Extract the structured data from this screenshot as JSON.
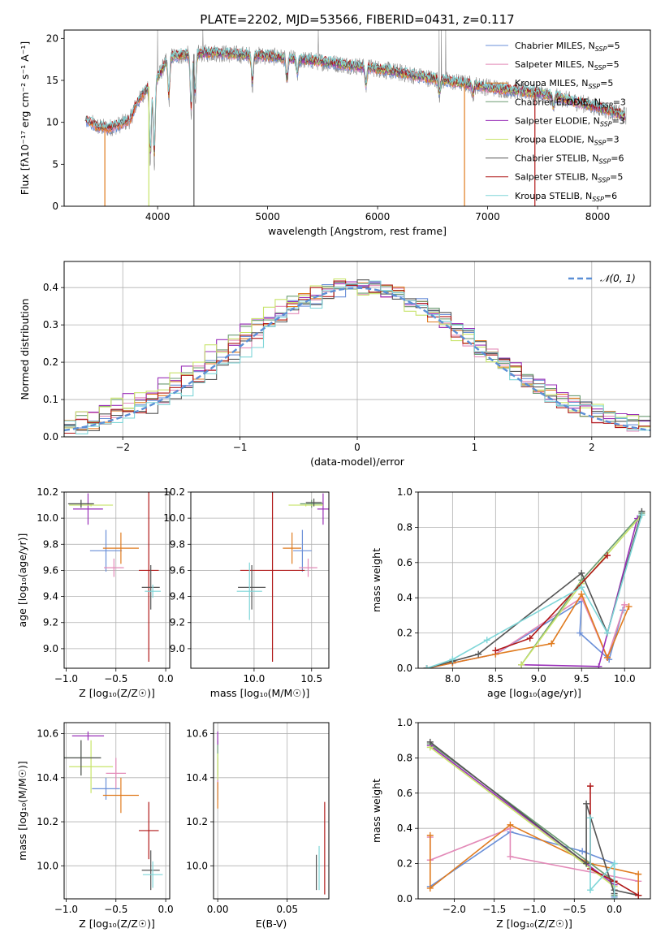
{
  "figure": {
    "title": "PLATE=2202, MJD=53566, FIBERID=0431, z=0.117"
  },
  "palette": {
    "c_chab_miles": "#6a8fd8",
    "c_salp_miles": "#e38ab8",
    "c_krou_miles": "#e07b1f",
    "c_chab_elod": "#6b9b72",
    "c_salp_elod": "#9a30b8",
    "c_krou_elod": "#c8e46a",
    "c_chab_stel": "#555555",
    "c_salp_stel": "#b01818",
    "c_krou_stel": "#7fd6d8",
    "gauss": "#5b8fd6"
  },
  "chart_data": [
    {
      "id": "spectrum",
      "type": "line",
      "xlabel": "wavelength [Angstrom, rest frame]",
      "ylabel": "Flux [fλ10⁻¹⁷ erg cm⁻² s⁻¹ A⁻¹]",
      "xlim": [
        3150,
        8480
      ],
      "ylim": [
        0,
        21
      ],
      "xticks": [
        4000,
        5000,
        6000,
        7000,
        8000
      ],
      "yticks": [
        0,
        5,
        10,
        15,
        20
      ],
      "grid": false,
      "legend_position": "top-right",
      "legend": [
        {
          "base": "Chabrier MILES, N",
          "sub": "SSP",
          "tail": "=5",
          "color_key": "c_chab_miles"
        },
        {
          "base": "Salpeter MILES, N",
          "sub": "SSP",
          "tail": "=5",
          "color_key": "c_salp_miles"
        },
        {
          "base": "Kroupa MILES, N",
          "sub": "SSP",
          "tail": "=5",
          "color_key": "c_krou_miles"
        },
        {
          "base": "Chabrier ELODIE, N",
          "sub": "SSP",
          "tail": "=3",
          "color_key": "c_chab_elod"
        },
        {
          "base": "Salpeter ELODIE, N",
          "sub": "SSP",
          "tail": "=3",
          "color_key": "c_salp_elod"
        },
        {
          "base": "Kroupa ELODIE, N",
          "sub": "SSP",
          "tail": "=3",
          "color_key": "c_krou_elod"
        },
        {
          "base": "Chabrier STELIB, N",
          "sub": "SSP",
          "tail": "=6",
          "color_key": "c_chab_stel"
        },
        {
          "base": "Salpeter STELIB, N",
          "sub": "SSP",
          "tail": "=5",
          "color_key": "c_salp_stel"
        },
        {
          "base": "Kroupa STELIB, N",
          "sub": "SSP",
          "tail": "=6",
          "color_key": "c_krou_stel"
        }
      ],
      "continuum": [
        [
          3350,
          10.2
        ],
        [
          3450,
          9.5
        ],
        [
          3550,
          9.3
        ],
        [
          3650,
          9.7
        ],
        [
          3750,
          10.3
        ],
        [
          3800,
          12.0
        ],
        [
          3900,
          14.0
        ],
        [
          4000,
          15.3
        ],
        [
          4100,
          17.8
        ],
        [
          4300,
          18.1
        ],
        [
          4500,
          18.3
        ],
        [
          4700,
          18.1
        ],
        [
          5000,
          17.9
        ],
        [
          5500,
          17.2
        ],
        [
          6000,
          16.4
        ],
        [
          6500,
          15.2
        ],
        [
          7000,
          14.2
        ],
        [
          7500,
          13.4
        ],
        [
          8000,
          11.8
        ],
        [
          8250,
          10.8
        ]
      ],
      "absorption_lines": [
        [
          3934,
          8.0
        ],
        [
          3969,
          8.5
        ],
        [
          4102,
          4.5
        ],
        [
          4305,
          6.5
        ],
        [
          4341,
          4.5
        ],
        [
          4861,
          3.0
        ],
        [
          5175,
          2.5
        ],
        [
          5270,
          1.5
        ],
        [
          5894,
          2.0
        ],
        [
          6563,
          1.5
        ],
        [
          6867,
          1.0
        ],
        [
          7600,
          1.2
        ]
      ],
      "emission_spikes": [
        [
          4000,
          21.0
        ],
        [
          4410,
          21.0
        ],
        [
          5460,
          21.0
        ],
        [
          6560,
          21.0
        ],
        [
          6580,
          21.0
        ],
        [
          6620,
          21.0
        ]
      ],
      "dropouts": [
        [
          3520,
          "c_krou_miles"
        ],
        [
          3920,
          "c_krou_elod"
        ],
        [
          4330,
          "c_chab_stel"
        ],
        [
          6790,
          "c_krou_miles"
        ],
        [
          7430,
          "c_salp_stel"
        ]
      ],
      "gray_start": 3400,
      "gray_end": 8260
    },
    {
      "id": "residuals",
      "type": "histogram",
      "xlabel": "(data-model)/error",
      "ylabel": "Normed distribution",
      "xlim": [
        -2.5,
        2.5
      ],
      "ylim": [
        0,
        0.47
      ],
      "xticks": [
        -2,
        -1,
        0,
        1,
        2
      ],
      "yticks": [
        0.0,
        0.1,
        0.2,
        0.3,
        0.4
      ],
      "grid": true,
      "bin_width": 0.1,
      "legend_position": "top-right",
      "gaussian_label": "𝒩(0, 1)"
    },
    {
      "id": "age_vs_Z",
      "type": "scatter",
      "xlabel": "Z [log₁₀(Z/Z☉)]",
      "ylabel": "age  [log₁₀(age/yr)]",
      "xlim": [
        -1.02,
        0.04
      ],
      "ylim": [
        8.85,
        10.2
      ],
      "xticks": [
        -1.0,
        -0.5,
        0.0
      ],
      "yticks": [
        9.0,
        9.2,
        9.4,
        9.6,
        9.8,
        10.0,
        10.2
      ],
      "grid": true,
      "points": [
        {
          "color_key": "c_chab_miles",
          "x": -0.6,
          "xerr": 0.16,
          "y": 9.75,
          "yerr": 0.16
        },
        {
          "color_key": "c_salp_miles",
          "x": -0.52,
          "xerr": 0.1,
          "y": 9.62,
          "yerr": 0.07
        },
        {
          "color_key": "c_krou_miles",
          "x": -0.45,
          "xerr": 0.18,
          "y": 9.77,
          "yerr": 0.12
        },
        {
          "color_key": "c_chab_elod",
          "x": -0.85,
          "xerr": 0.12,
          "y": 10.11,
          "yerr": 0.03
        },
        {
          "color_key": "c_salp_elod",
          "x": -0.78,
          "xerr": 0.15,
          "y": 10.07,
          "yerr": 0.12
        },
        {
          "color_key": "c_krou_elod",
          "x": -0.75,
          "xerr": 0.22,
          "y": 10.1,
          "yerr": 0.01
        },
        {
          "color_key": "c_chab_stel",
          "x": -0.85,
          "xerr": 0.13,
          "y": 10.11,
          "yerr": 0.03
        },
        {
          "color_key": "c_salp_stel",
          "x": -0.17,
          "xerr": 0.1,
          "y": 9.6,
          "yerr": 0.7
        },
        {
          "color_key": "c_chab_stel",
          "x": -0.15,
          "xerr": 0.09,
          "y": 9.47,
          "yerr": 0.17
        },
        {
          "color_key": "c_krou_stel",
          "x": -0.13,
          "xerr": 0.08,
          "y": 9.44,
          "yerr": 0.05
        }
      ]
    },
    {
      "id": "age_vs_mass",
      "type": "scatter",
      "xlabel": "mass [log₁₀(M/M☉)]",
      "ylabel": "",
      "xlim": [
        9.45,
        10.65
      ],
      "ylim": [
        8.85,
        10.2
      ],
      "xticks": [
        10.0,
        10.5
      ],
      "yticks": [
        9.0,
        9.2,
        9.4,
        9.6,
        9.8,
        10.0,
        10.2
      ],
      "grid": true,
      "points": [
        {
          "color_key": "c_chab_miles",
          "x": 10.42,
          "xerr": 0.08,
          "y": 9.75,
          "yerr": 0.16
        },
        {
          "color_key": "c_salp_miles",
          "x": 10.47,
          "xerr": 0.08,
          "y": 9.62,
          "yerr": 0.07
        },
        {
          "color_key": "c_krou_miles",
          "x": 10.33,
          "xerr": 0.08,
          "y": 9.77,
          "yerr": 0.12
        },
        {
          "color_key": "c_chab_elod",
          "x": 10.5,
          "xerr": 0.1,
          "y": 10.11,
          "yerr": 0.03
        },
        {
          "color_key": "c_salp_elod",
          "x": 10.6,
          "xerr": 0.05,
          "y": 10.07,
          "yerr": 0.12
        },
        {
          "color_key": "c_krou_elod",
          "x": 10.45,
          "xerr": 0.15,
          "y": 10.1,
          "yerr": 0.01
        },
        {
          "color_key": "c_chab_stel",
          "x": 10.52,
          "xerr": 0.07,
          "y": 10.12,
          "yerr": 0.03
        },
        {
          "color_key": "c_salp_stel",
          "x": 10.16,
          "xerr": 0.28,
          "y": 9.6,
          "yerr": 0.7
        },
        {
          "color_key": "c_chab_stel",
          "x": 9.98,
          "xerr": 0.12,
          "y": 9.47,
          "yerr": 0.17
        },
        {
          "color_key": "c_krou_stel",
          "x": 9.96,
          "xerr": 0.11,
          "y": 9.44,
          "yerr": 0.22
        }
      ]
    },
    {
      "id": "weight_vs_age",
      "type": "line",
      "xlabel": "age  [log₁₀(age/yr)]",
      "ylabel": "mass weight",
      "xlim": [
        7.6,
        10.3
      ],
      "ylim": [
        0,
        1
      ],
      "xticks": [
        8.0,
        8.5,
        9.0,
        9.5,
        10.0
      ],
      "yticks": [
        0.0,
        0.2,
        0.4,
        0.6,
        0.8,
        1.0
      ],
      "grid": true,
      "series": [
        {
          "color_key": "c_chab_miles",
          "x": [
            7.7,
            8.0,
            8.5,
            9.5,
            9.48,
            9.82,
            9.98
          ],
          "y": [
            0.0,
            0.03,
            0.08,
            0.38,
            0.2,
            0.05,
            0.33
          ]
        },
        {
          "color_key": "c_salp_miles",
          "x": [
            7.7,
            8.0,
            8.5,
            9.5,
            9.8,
            10.0
          ],
          "y": [
            0.0,
            0.03,
            0.08,
            0.4,
            0.06,
            0.36
          ]
        },
        {
          "color_key": "c_krou_miles",
          "x": [
            7.7,
            8.0,
            8.5,
            9.15,
            9.5,
            9.8,
            10.05
          ],
          "y": [
            0.0,
            0.03,
            0.08,
            0.14,
            0.42,
            0.06,
            0.35
          ]
        },
        {
          "color_key": "c_chab_elod",
          "x": [
            8.8,
            9.5,
            10.2
          ],
          "y": [
            0.02,
            0.5,
            0.88
          ]
        },
        {
          "color_key": "c_salp_elod",
          "x": [
            8.8,
            9.7,
            10.15
          ],
          "y": [
            0.02,
            0.01,
            0.85
          ]
        },
        {
          "color_key": "c_krou_elod",
          "x": [
            8.8,
            9.5,
            10.2
          ],
          "y": [
            0.02,
            0.48,
            0.87
          ]
        },
        {
          "color_key": "c_chab_stel",
          "x": [
            7.7,
            8.0,
            8.3,
            9.5,
            9.8,
            10.2
          ],
          "y": [
            0.0,
            0.04,
            0.08,
            0.54,
            0.2,
            0.89
          ]
        },
        {
          "color_key": "c_salp_stel",
          "x": [
            8.5,
            8.9,
            9.8
          ],
          "y": [
            0.1,
            0.17,
            0.64
          ]
        },
        {
          "color_key": "c_krou_stel",
          "x": [
            7.7,
            8.0,
            8.4,
            9.5,
            9.8,
            10.2
          ],
          "y": [
            0.0,
            0.05,
            0.16,
            0.46,
            0.2,
            0.87
          ]
        }
      ]
    },
    {
      "id": "mass_vs_Z",
      "type": "scatter",
      "xlabel": "Z [log₁₀(Z/Z☉)]",
      "ylabel": "mass [log₁₀(M/M☉)]",
      "xlim": [
        -1.02,
        0.04
      ],
      "ylim": [
        9.85,
        10.65
      ],
      "xticks": [
        -1.0,
        -0.5,
        0.0
      ],
      "yticks": [
        10.0,
        10.2,
        10.4,
        10.6
      ],
      "grid": true,
      "points": [
        {
          "color_key": "c_chab_miles",
          "x": -0.6,
          "xerr": 0.14,
          "y": 10.35,
          "yerr": 0.05
        },
        {
          "color_key": "c_salp_miles",
          "x": -0.5,
          "xerr": 0.1,
          "y": 10.42,
          "yerr": 0.07
        },
        {
          "color_key": "c_krou_miles",
          "x": -0.45,
          "xerr": 0.18,
          "y": 10.32,
          "yerr": 0.08
        },
        {
          "color_key": "c_chab_elod",
          "x": -0.85,
          "xerr": 0.2,
          "y": 10.49,
          "yerr": 0.08
        },
        {
          "color_key": "c_salp_elod",
          "x": -0.78,
          "xerr": 0.16,
          "y": 10.59,
          "yerr": 0.02
        },
        {
          "color_key": "c_krou_elod",
          "x": -0.75,
          "xerr": 0.22,
          "y": 10.45,
          "yerr": 0.12
        },
        {
          "color_key": "c_chab_stel",
          "x": -0.85,
          "xerr": 0.2,
          "y": 10.49,
          "yerr": 0.08
        },
        {
          "color_key": "c_salp_stel",
          "x": -0.17,
          "xerr": 0.1,
          "y": 10.16,
          "yerr": 0.13
        },
        {
          "color_key": "c_chab_stel",
          "x": -0.15,
          "xerr": 0.09,
          "y": 9.98,
          "yerr": 0.09
        },
        {
          "color_key": "c_krou_stel",
          "x": -0.13,
          "xerr": 0.1,
          "y": 9.96,
          "yerr": 0.06
        }
      ]
    },
    {
      "id": "mass_vs_EBV",
      "type": "scatter",
      "xlabel": "E(B-V)",
      "ylabel": "",
      "xlim": [
        -0.003,
        0.08
      ],
      "ylim": [
        9.85,
        10.65
      ],
      "xticks": [
        0.0,
        0.05
      ],
      "yticks": [
        10.0,
        10.2,
        10.4,
        10.6
      ],
      "grid": true,
      "points": [
        {
          "color_key": "c_chab_miles",
          "x": 0.0,
          "xerr": 0,
          "y": 10.35,
          "yerr": 0.05
        },
        {
          "color_key": "c_salp_miles",
          "x": 0.0,
          "xerr": 0,
          "y": 10.42,
          "yerr": 0.07
        },
        {
          "color_key": "c_krou_miles",
          "x": 0.0,
          "xerr": 0,
          "y": 10.32,
          "yerr": 0.06
        },
        {
          "color_key": "c_chab_elod",
          "x": 0.0,
          "xerr": 0,
          "y": 10.49,
          "yerr": 0.08
        },
        {
          "color_key": "c_salp_elod",
          "x": 0.0,
          "xerr": 0,
          "y": 10.58,
          "yerr": 0.03
        },
        {
          "color_key": "c_krou_elod",
          "x": 0.0,
          "xerr": 0,
          "y": 10.45,
          "yerr": 0.06
        },
        {
          "color_key": "c_chab_stel",
          "x": 0.071,
          "xerr": 0,
          "y": 9.97,
          "yerr": 0.08
        },
        {
          "color_key": "c_krou_stel",
          "x": 0.073,
          "xerr": 0,
          "y": 9.99,
          "yerr": 0.1
        },
        {
          "color_key": "c_salp_stel",
          "x": 0.077,
          "xerr": 0,
          "y": 10.08,
          "yerr": 0.21
        }
      ]
    },
    {
      "id": "weight_vs_Z",
      "type": "line",
      "xlabel": "Z [log₁₀(Z/Z☉)]",
      "ylabel": "mass weight",
      "xlim": [
        -2.45,
        0.45
      ],
      "ylim": [
        0,
        1
      ],
      "xticks": [
        -2.0,
        -1.5,
        -1.0,
        -0.5,
        0.0
      ],
      "yticks": [
        0.0,
        0.2,
        0.4,
        0.6,
        0.8,
        1.0
      ],
      "grid": true,
      "series": [
        {
          "color_key": "c_chab_miles",
          "x": [
            -2.3,
            -1.3,
            -0.4,
            0.0,
            0.0
          ],
          "y": [
            0.07,
            0.38,
            0.27,
            0.2,
            0.01
          ]
        },
        {
          "color_key": "c_salp_miles",
          "x": [
            -2.3,
            -2.3,
            -1.3,
            -1.3,
            0.3,
            0.3
          ],
          "y": [
            0.35,
            0.22,
            0.4,
            0.24,
            0.1,
            0.02
          ]
        },
        {
          "color_key": "c_krou_miles",
          "x": [
            -2.3,
            -2.3,
            -1.3,
            -0.3,
            0.3,
            0.3
          ],
          "y": [
            0.36,
            0.06,
            0.42,
            0.2,
            0.14,
            0.02
          ]
        },
        {
          "color_key": "c_chab_elod",
          "x": [
            -2.3,
            0.0,
            0.0
          ],
          "y": [
            0.88,
            0.1,
            0.02
          ]
        },
        {
          "color_key": "c_salp_elod",
          "x": [
            -2.3,
            0.0
          ],
          "y": [
            0.87,
            0.08
          ]
        },
        {
          "color_key": "c_krou_elod",
          "x": [
            -2.3,
            0.0
          ],
          "y": [
            0.86,
            0.07
          ]
        },
        {
          "color_key": "c_chab_stel",
          "x": [
            -2.3,
            -0.35,
            -0.35,
            0.0,
            0.0,
            0.3
          ],
          "y": [
            0.89,
            0.2,
            0.54,
            0.03,
            0.05,
            0.02
          ]
        },
        {
          "color_key": "c_salp_stel",
          "x": [
            -0.3,
            -0.3,
            0.0,
            0.3
          ],
          "y": [
            0.64,
            0.17,
            0.1,
            0.02
          ]
        },
        {
          "color_key": "c_krou_stel",
          "x": [
            -0.3,
            -0.3,
            0.0,
            0.0
          ],
          "y": [
            0.46,
            0.05,
            0.2,
            0.0
          ]
        }
      ]
    }
  ]
}
